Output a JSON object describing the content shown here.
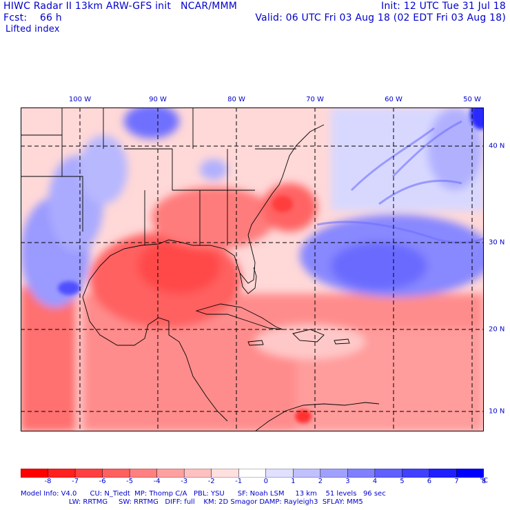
{
  "header": {
    "line1_left": "HIWC Radar II 13km ARW-GFS init   NCAR/MMM",
    "line1_right": "Init: 12 UTC Tue 31 Jul 18",
    "line2_left": "Fcst:    66 h",
    "line2_right": "Valid: 06 UTC Fri 03 Aug 18 (02 EDT Fri 03 Aug 18)",
    "field_name": "Lifted index"
  },
  "map": {
    "longitude_labels": [
      "100 W",
      "90 W",
      "80 W",
      "70 W",
      "60 W",
      "50 W"
    ],
    "latitude_labels": [
      "40 N",
      "30 N",
      "20 N",
      "10 N"
    ]
  },
  "colorbar": {
    "tick_labels": [
      "-8",
      "-7",
      "-6",
      "-5",
      "-4",
      "-3",
      "-2",
      "-1",
      "0",
      "1",
      "2",
      "3",
      "4",
      "5",
      "6",
      "7",
      "8"
    ],
    "unit": "°C",
    "colors": [
      "#ff0000",
      "#ff2020",
      "#ff4040",
      "#ff6060",
      "#ff8080",
      "#ffa0a0",
      "#ffc0c0",
      "#ffe0e0",
      "#ffffff",
      "#e0e0ff",
      "#c0c0ff",
      "#a0a0ff",
      "#8080ff",
      "#6060ff",
      "#4040ff",
      "#2020ff",
      "#0000ff"
    ]
  },
  "footer": {
    "line1": "Model Info: V4.0      CU: N_Tiedt  MP: Thomp C/A   PBL: YSU      SF: Noah LSM     13 km    51 levels   96 sec",
    "line2": "                      LW: RRTMG     SW: RRTMG   DIFF: full    KM: 2D Smagor DAMP: Rayleigh3  SFLAY: MM5"
  }
}
